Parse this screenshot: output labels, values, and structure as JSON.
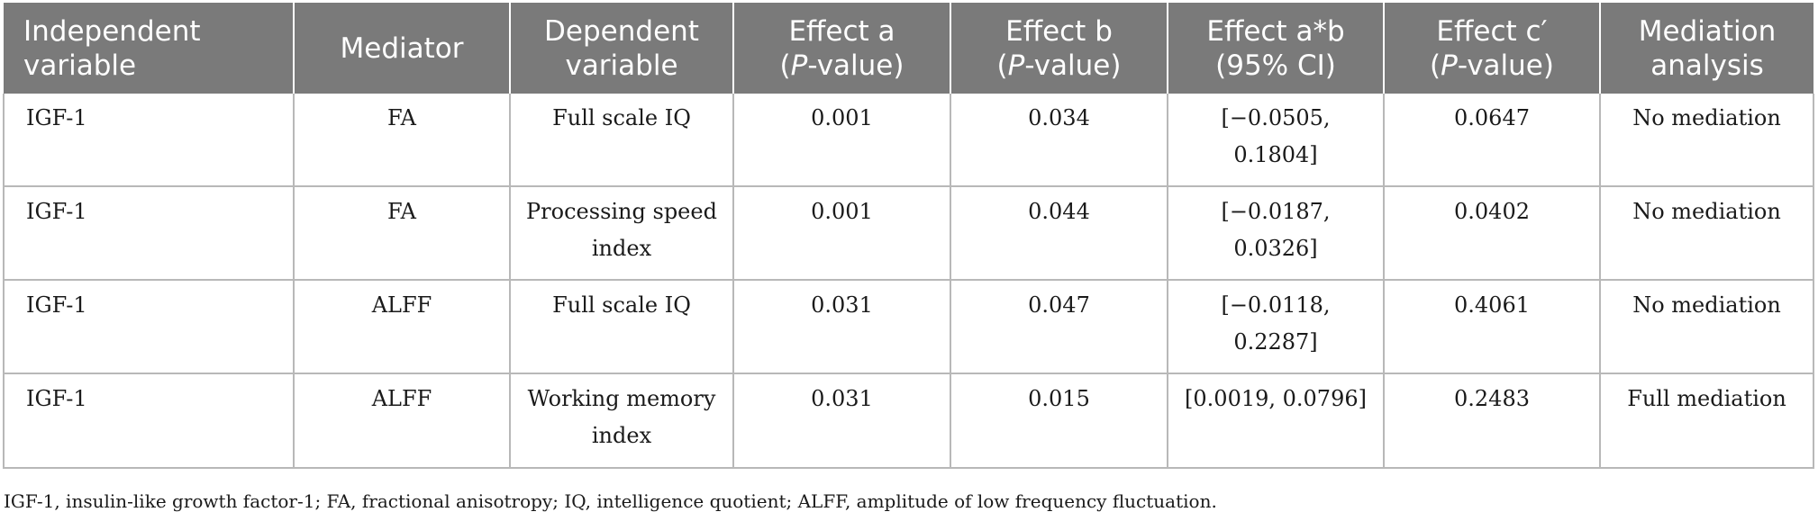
{
  "table": {
    "headers": [
      {
        "text": "Independent variable",
        "align": "left"
      },
      {
        "text": "Mediator"
      },
      {
        "text": "Dependent variable"
      },
      {
        "pre": "Effect a",
        "italic": "P",
        "post": "-value)",
        "open": "("
      },
      {
        "pre": "Effect b",
        "italic": "P",
        "post": "-value)",
        "open": "("
      },
      {
        "text": "Effect a*b (95% CI)"
      },
      {
        "pre": "Effect c′",
        "italic": "P",
        "post": "-value)",
        "open": "("
      },
      {
        "text": "Mediation analysis"
      }
    ],
    "rows": [
      [
        "IGF-1",
        "FA",
        "Full scale IQ",
        "0.001",
        "0.034",
        "[−0.0505, 0.1804]",
        "0.0647",
        "No mediation"
      ],
      [
        "IGF-1",
        "FA",
        "Processing speed index",
        "0.001",
        "0.044",
        "[−0.0187, 0.0326]",
        "0.0402",
        "No mediation"
      ],
      [
        "IGF-1",
        "ALFF",
        "Full scale IQ",
        "0.031",
        "0.047",
        "[−0.0118, 0.2287]",
        "0.4061",
        "No mediation"
      ],
      [
        "IGF-1",
        "ALFF",
        "Working memory index",
        "0.031",
        "0.015",
        "[0.0019, 0.0796]",
        "0.2483",
        "Full mediation"
      ]
    ]
  },
  "footnote": "IGF-1, insulin-like growth factor-1; FA, fractional anisotropy; IQ, intelligence quotient; ALFF, amplitude of low frequency fluctuation.",
  "colors": {
    "header_bg": "#7a7a7a",
    "header_text": "#ffffff",
    "grid": "#b8b8b8"
  }
}
